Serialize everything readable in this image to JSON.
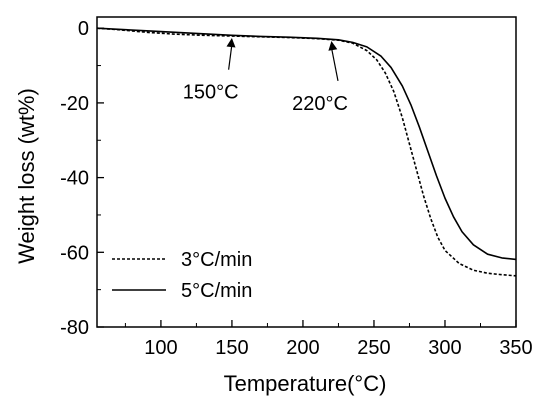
{
  "chart_data": {
    "type": "line",
    "title": "",
    "xlabel": "Temperature(°C)",
    "ylabel": "Weight loss (wt%)",
    "xlim": [
      55,
      350
    ],
    "ylim": [
      -80,
      3
    ],
    "x_ticks": [
      100,
      150,
      200,
      250,
      300,
      350
    ],
    "x_tick_labels": [
      "100",
      "150",
      "200",
      "250",
      "300",
      "350"
    ],
    "y_ticks": [
      0,
      -20,
      -40,
      -60,
      -80
    ],
    "y_tick_labels": [
      "0",
      "-20",
      "-40",
      "-60",
      "-80"
    ],
    "grid": false,
    "legend_position": "bottom-left",
    "series": [
      {
        "name": "3°C/min",
        "style": "dashed",
        "color": "#000000",
        "x": [
          55,
          70,
          90,
          110,
          130,
          150,
          170,
          190,
          210,
          225,
          235,
          245,
          252,
          258,
          264,
          270,
          275,
          280,
          285,
          290,
          295,
          300,
          310,
          320,
          330,
          340,
          350
        ],
        "y": [
          0,
          -0.4,
          -1.1,
          -1.6,
          -1.9,
          -2.1,
          -2.3,
          -2.5,
          -2.8,
          -3.2,
          -4.0,
          -6.0,
          -8.5,
          -12.0,
          -17.0,
          -24.0,
          -31.0,
          -38.0,
          -45.0,
          -51.0,
          -56.0,
          -59.5,
          -63.0,
          -64.8,
          -65.6,
          -66.0,
          -66.3
        ]
      },
      {
        "name": "5°C/min",
        "style": "solid",
        "color": "#000000",
        "x": [
          55,
          70,
          90,
          110,
          130,
          150,
          170,
          190,
          210,
          225,
          235,
          245,
          255,
          262,
          270,
          276,
          282,
          288,
          294,
          300,
          306,
          312,
          320,
          330,
          340,
          350
        ],
        "y": [
          0,
          -0.3,
          -0.7,
          -1.1,
          -1.5,
          -1.9,
          -2.2,
          -2.4,
          -2.7,
          -3.1,
          -3.8,
          -5.0,
          -7.5,
          -10.5,
          -15.5,
          -20.5,
          -26.5,
          -33.0,
          -39.5,
          -45.5,
          -50.5,
          -54.5,
          -58.0,
          -60.5,
          -61.5,
          -61.9
        ]
      }
    ],
    "annotations": [
      {
        "text": "150°C",
        "x": 150,
        "y": -2.1,
        "label_x": 135,
        "label_y": -17
      },
      {
        "text": "220°C",
        "x": 220,
        "y": -2.9,
        "label_x": 212,
        "label_y": -20
      }
    ]
  }
}
